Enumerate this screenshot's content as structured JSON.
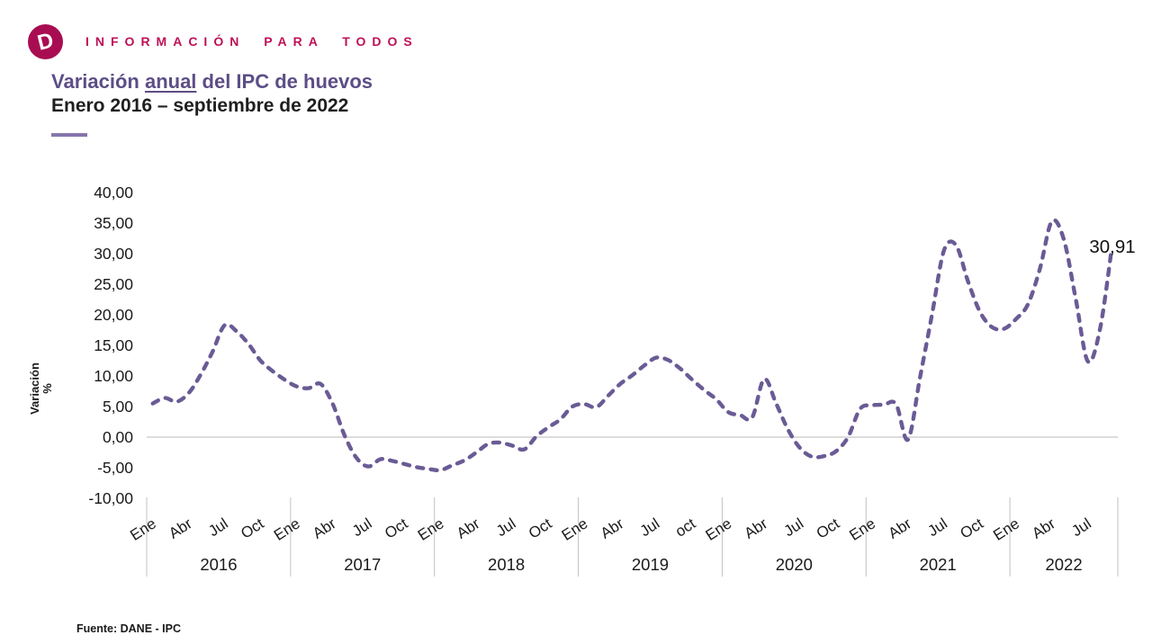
{
  "header": {
    "logo_letter": "D",
    "brand_text": "INFORMACIÓN PARA TODOS"
  },
  "title": {
    "prefix": "Variación ",
    "underlined": "anual",
    "suffix": " del IPC de huevos",
    "subtitle": "Enero 2016 – septiembre de 2022"
  },
  "y_axis": {
    "title_line1": "Variación",
    "title_line2": "%",
    "tick_labels": [
      "40,00",
      "35,00",
      "30,00",
      "25,00",
      "20,00",
      "15,00",
      "10,00",
      "5,00",
      "0,00",
      "-5,00",
      "-10,00"
    ]
  },
  "x_axis": {
    "years": [
      {
        "label": "2016",
        "month_ticks": [
          "Ene",
          "Abr",
          "Jul",
          "Oct"
        ]
      },
      {
        "label": "2017",
        "month_ticks": [
          "Ene",
          "Abr",
          "Jul",
          "Oct"
        ]
      },
      {
        "label": "2018",
        "month_ticks": [
          "Ene",
          "Abr",
          "Jul",
          "Oct"
        ]
      },
      {
        "label": "2019",
        "month_ticks": [
          "Ene",
          "Abr",
          "Jul",
          "oct"
        ]
      },
      {
        "label": "2020",
        "month_ticks": [
          "Ene",
          "Abr",
          "Jul",
          "Oct"
        ]
      },
      {
        "label": "2021",
        "month_ticks": [
          "Ene",
          "Abr",
          "Jul",
          "Oct"
        ]
      },
      {
        "label": "2022",
        "month_ticks": [
          "Ene",
          "Abr",
          "Jul"
        ]
      }
    ]
  },
  "annotation": {
    "last_value_label": "30,91"
  },
  "footer": {
    "source": "Fuente: DANE - IPC"
  },
  "colors": {
    "line_purple": "#6A5B95",
    "title_purple": "#5C4E86",
    "brand_crimson": "#BE1056",
    "logo_crimson": "#A80D52",
    "zero_line_gray": "#C6C6C6",
    "divider_gray": "#C2C2C2",
    "text_dark": "#1A1A1A"
  },
  "chart_data": {
    "type": "line",
    "title": "Variación anual del IPC de huevos",
    "subtitle": "Enero 2016 – septiembre de 2022",
    "unit": "%",
    "ylabel": "Variación %",
    "ylim": [
      -10,
      40
    ],
    "ytick_step": 5,
    "x_month_ticks": [
      "Ene",
      "Abr",
      "Jul",
      "Oct"
    ],
    "line_style": "dashed",
    "legend": "none",
    "grid": "zero-line-only",
    "series": [
      {
        "name": "Variación anual del IPC de huevos (%)",
        "by_year": [
          {
            "year": "2016",
            "values": [
              5.5,
              6.4,
              5.8,
              7.2,
              10.2,
              14.0,
              18.3,
              17.3,
              15.2,
              12.5,
              10.8,
              9.4
            ]
          },
          {
            "year": "2017",
            "values": [
              8.3,
              8.0,
              8.7,
              5.5,
              0.3,
              -3.4,
              -4.8,
              -3.6,
              -3.9,
              -4.4,
              -4.9,
              -5.2
            ]
          },
          {
            "year": "2018",
            "values": [
              -5.4,
              -4.6,
              -3.8,
              -2.5,
              -1.1,
              -0.9,
              -1.4,
              -2.0,
              0.1,
              1.6,
              2.9,
              5.0
            ]
          },
          {
            "year": "2019",
            "values": [
              5.4,
              4.9,
              6.8,
              8.7,
              10.1,
              11.7,
              13.0,
              12.6,
              11.2,
              9.4,
              7.7,
              6.2
            ]
          },
          {
            "year": "2020",
            "values": [
              4.1,
              3.6,
              3.2,
              9.5,
              5.5,
              1.2,
              -1.8,
              -3.2,
              -3.1,
              -2.3,
              0.0,
              4.6
            ]
          },
          {
            "year": "2021",
            "values": [
              5.2,
              5.3,
              5.4,
              -0.4,
              9.7,
              20.0,
              30.5,
              31.4,
              25.5,
              20.5,
              18.0,
              17.7
            ]
          },
          {
            "year": "2022",
            "values": [
              19.3,
              21.7,
              27.5,
              35.3,
              32.3,
              22.5,
              12.4,
              17.5,
              30.91
            ]
          }
        ]
      }
    ],
    "last_point": {
      "label": "30,91",
      "value": 30.91,
      "period": "septiembre 2022"
    }
  }
}
